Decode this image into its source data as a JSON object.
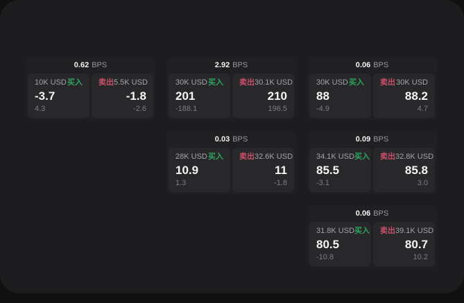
{
  "labels": {
    "buy": "买入",
    "sell": "卖出",
    "bps_suffix": "BPS"
  },
  "colors": {
    "buy_green": "#2FA35C",
    "sell_red": "#C85069",
    "outer_background": "#111112",
    "surface": "#1D1D1F",
    "card": "#202022",
    "panel": "#28282A"
  },
  "cards": [
    {
      "row": 1,
      "col": 1,
      "bps": "0.62",
      "buy": {
        "amount": "10K USD",
        "value": "-3.7",
        "sub": "4.3"
      },
      "sell": {
        "amount": "5.5K USD",
        "value": "-1.8",
        "sub": "-2.6"
      }
    },
    {
      "row": 1,
      "col": 2,
      "bps": "2.92",
      "buy": {
        "amount": "30K USD",
        "value": "201",
        "sub": "-188.1"
      },
      "sell": {
        "amount": "30.1K USD",
        "value": "210",
        "sub": "196.5"
      }
    },
    {
      "row": 1,
      "col": 3,
      "bps": "0.06",
      "buy": {
        "amount": "30K USD",
        "value": "88",
        "sub": "-4.9"
      },
      "sell": {
        "amount": "30K USD",
        "value": "88.2",
        "sub": "4.7"
      }
    },
    {
      "row": 2,
      "col": 2,
      "bps": "0.03",
      "buy": {
        "amount": "28K USD",
        "value": "10.9",
        "sub": "1.3"
      },
      "sell": {
        "amount": "32.6K USD",
        "value": "11",
        "sub": "-1.8"
      }
    },
    {
      "row": 2,
      "col": 3,
      "bps": "0.09",
      "buy": {
        "amount": "34.1K USD",
        "value": "85.5",
        "sub": "-3.1"
      },
      "sell": {
        "amount": "32.8K USD",
        "value": "85.8",
        "sub": "3.0"
      }
    },
    {
      "row": 3,
      "col": 3,
      "bps": "0.06",
      "buy": {
        "amount": "31.8K USD",
        "value": "80.5",
        "sub": "-10.8"
      },
      "sell": {
        "amount": "39.1K USD",
        "value": "80.7",
        "sub": "10.2"
      }
    }
  ]
}
